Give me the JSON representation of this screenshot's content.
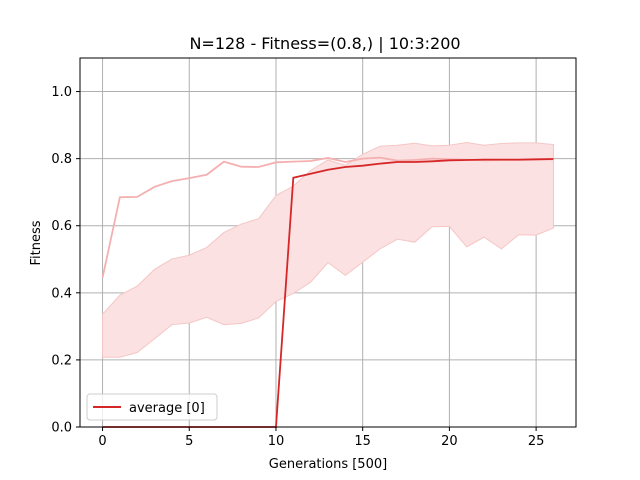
{
  "chart_data": {
    "type": "line",
    "title": "N=128  - Fitness=(0.8,) | 10:3:200",
    "xlabel": "Generations [500]",
    "ylabel": "Fitness",
    "xlim": [
      -1.3,
      27.3
    ],
    "ylim": [
      0.0,
      1.1
    ],
    "xticks": [
      0,
      5,
      10,
      15,
      20,
      25
    ],
    "yticks": [
      0.0,
      0.2,
      0.4,
      0.6,
      0.8,
      1.0
    ],
    "grid": true,
    "legend_position": "lower-left",
    "colors": {
      "average": "#d62728",
      "max_line": "#f4b0b0",
      "band_fill": "#fbe1e1",
      "band_edge": "#f5c6c6",
      "grid": "#b0b0b0"
    },
    "series": [
      {
        "name": "average [0]",
        "x": [
          0,
          1,
          2,
          3,
          4,
          5,
          6,
          7,
          8,
          9,
          10,
          11,
          12,
          13,
          14,
          15,
          16,
          17,
          18,
          19,
          20,
          21,
          22,
          23,
          24,
          25,
          26
        ],
        "values": [
          0,
          0,
          0,
          0,
          0,
          0,
          0,
          0,
          0,
          0,
          0,
          0.743,
          0.755,
          0.767,
          0.775,
          0.779,
          0.785,
          0.79,
          0.79,
          0.792,
          0.795,
          0.796,
          0.797,
          0.797,
          0.797,
          0.798,
          0.799
        ]
      },
      {
        "x": [
          0,
          1,
          2,
          3,
          4,
          5,
          6,
          7,
          8,
          9,
          10,
          11,
          12,
          13,
          14,
          15,
          16,
          17,
          18,
          19,
          20,
          21,
          22,
          23,
          24,
          25,
          26
        ],
        "values": [
          0.445,
          0.685,
          0.686,
          0.716,
          0.733,
          0.742,
          0.752,
          0.791,
          0.776,
          0.775,
          0.789,
          0.791,
          0.793,
          0.802,
          0.79,
          0.8,
          0.803,
          0.794,
          0.796,
          0.8,
          0.798,
          0.797,
          0.795,
          0.796,
          0.796,
          0.797,
          0.798
        ]
      }
    ],
    "band": {
      "x": [
        0,
        1,
        2,
        3,
        4,
        5,
        6,
        7,
        8,
        9,
        10,
        11,
        12,
        13,
        14,
        15,
        16,
        17,
        18,
        19,
        20,
        21,
        22,
        23,
        24,
        25,
        26
      ],
      "upper": [
        0.336,
        0.393,
        0.42,
        0.47,
        0.501,
        0.512,
        0.535,
        0.58,
        0.605,
        0.621,
        0.69,
        0.718,
        0.765,
        0.796,
        0.78,
        0.813,
        0.837,
        0.84,
        0.846,
        0.838,
        0.84,
        0.848,
        0.84,
        0.845,
        0.847,
        0.847,
        0.842
      ],
      "lower": [
        0.208,
        0.208,
        0.222,
        0.263,
        0.305,
        0.31,
        0.327,
        0.305,
        0.309,
        0.325,
        0.374,
        0.398,
        0.432,
        0.49,
        0.452,
        0.491,
        0.531,
        0.56,
        0.551,
        0.597,
        0.598,
        0.537,
        0.566,
        0.531,
        0.573,
        0.572,
        0.593
      ]
    }
  }
}
